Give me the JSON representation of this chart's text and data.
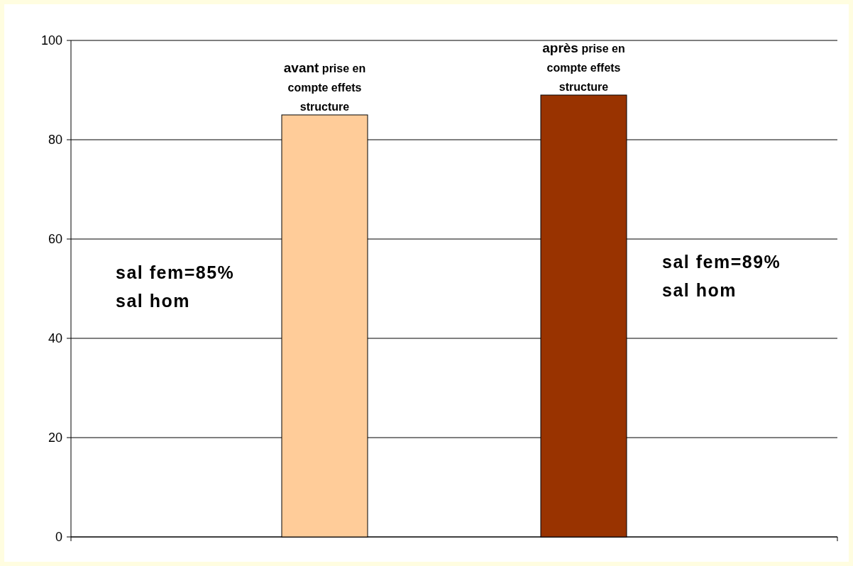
{
  "chart_data": {
    "type": "bar",
    "categories": [
      null
    ],
    "series": [
      {
        "color": "#ffcc99",
        "values": [
          85
        ]
      },
      {
        "color": "#993300",
        "values": [
          89
        ]
      }
    ],
    "ylim": [
      0,
      100
    ],
    "yticks": [
      0,
      20,
      40,
      60,
      80,
      100
    ],
    "grid": "y",
    "annotations": [
      "avant prise en compte effets structure",
      "après prise en compte effets structure",
      "sal fem=85%\nsal hom",
      "sal fem=89%\nsal hom"
    ]
  }
}
